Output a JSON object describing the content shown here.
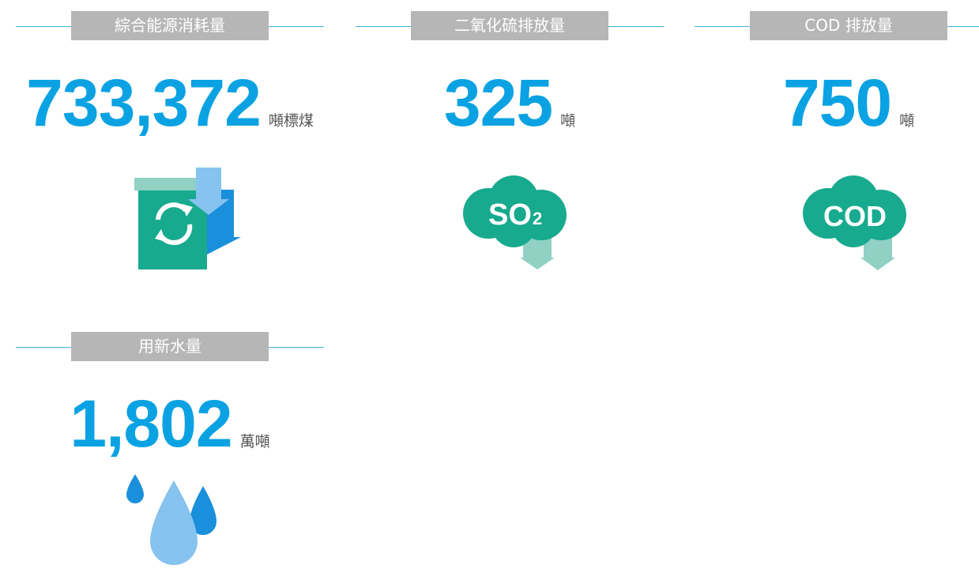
{
  "items": [
    {
      "label": "綜合能源消耗量",
      "value": "733,372",
      "unit": "噸標煤"
    },
    {
      "label": "二氧化硫排放量",
      "value": "325",
      "unit": "噸",
      "icon_text": "SO",
      "icon_sub": "2"
    },
    {
      "label": "COD 排放量",
      "value": "750",
      "unit": "噸",
      "icon_text": "COD"
    },
    {
      "label": "用新水量",
      "value": "1,802",
      "unit": "萬噸"
    }
  ]
}
